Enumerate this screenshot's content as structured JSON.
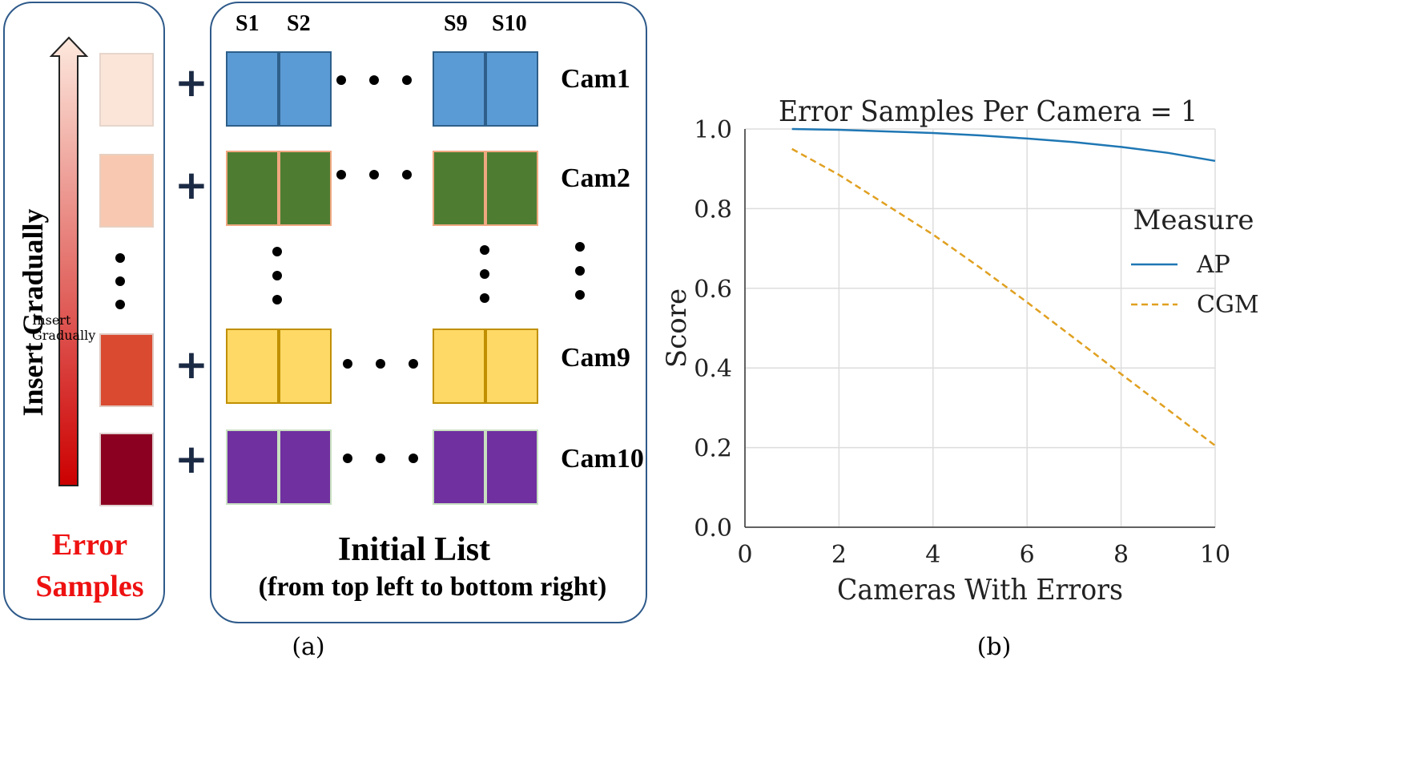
{
  "diagram": {
    "error_panel": {
      "arrow_label": "Insert Gradually",
      "title_line1": "Error",
      "title_line2": "Samples",
      "swatch_colors": [
        "#fbe4d8",
        "#f8c9b0",
        "#d94a30",
        "#8b0020"
      ]
    },
    "list_panel": {
      "col_headers": [
        "S1",
        "S2",
        "S9",
        "S10"
      ],
      "rows": [
        {
          "label": "Cam1",
          "fill": "#5b9bd5",
          "border": "#2e5f8a"
        },
        {
          "label": "Cam2",
          "fill": "#4e7d32",
          "border": "#f0a880"
        },
        {
          "label": "Cam9",
          "fill": "#ffd966",
          "border": "#c09000"
        },
        {
          "label": "Cam10",
          "fill": "#7030a0",
          "border": "#c8e0c0"
        }
      ],
      "title": "Initial List",
      "subtitle": "(from top left to bottom right)"
    },
    "plus_sign": "+",
    "caption_a": "(a)",
    "caption_b": "(b)"
  },
  "chart_data": {
    "type": "line",
    "title": "Error Samples Per Camera = 1",
    "xlabel": "Cameras With Errors",
    "ylabel": "Score",
    "xlim": [
      0,
      10
    ],
    "ylim": [
      0,
      1
    ],
    "xticks": [
      0,
      2,
      4,
      6,
      8,
      10
    ],
    "yticks": [
      0.0,
      0.2,
      0.4,
      0.6,
      0.8,
      1.0
    ],
    "ytick_labels": [
      "0.0",
      "0.2",
      "0.4",
      "0.6",
      "0.8",
      "1.0"
    ],
    "x": [
      1,
      2,
      3,
      4,
      5,
      6,
      7,
      8,
      9,
      10
    ],
    "series": [
      {
        "name": "AP",
        "color": "#1f77b4",
        "dash": "solid",
        "values": [
          1.0,
          0.998,
          0.994,
          0.99,
          0.984,
          0.976,
          0.967,
          0.955,
          0.94,
          0.92
        ]
      },
      {
        "name": "CGM",
        "color": "#e0a020",
        "dash": "dashed",
        "values": [
          0.95,
          0.885,
          0.81,
          0.735,
          0.652,
          0.565,
          0.475,
          0.385,
          0.295,
          0.205
        ]
      }
    ],
    "legend_title": "Measure",
    "legend_position": "right",
    "grid": true
  }
}
